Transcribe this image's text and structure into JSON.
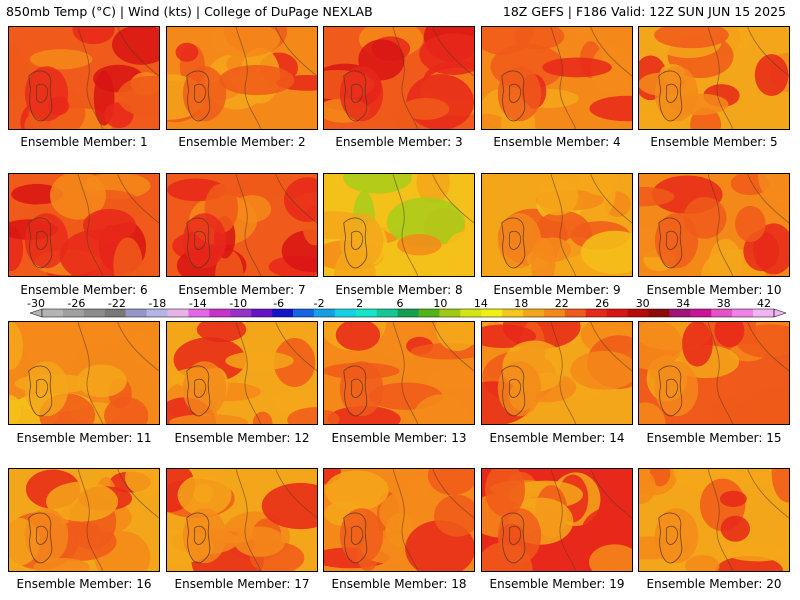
{
  "header": {
    "left": "850mb Temp (°C) | Wind (kts) | College of DuPage NEXLAB",
    "right": "18Z GEFS | F186 Valid: 12Z SUN JUN 15 2025"
  },
  "caption_prefix": "Ensemble Member: ",
  "members": [
    1,
    2,
    3,
    4,
    5,
    6,
    7,
    8,
    9,
    10,
    11,
    12,
    13,
    14,
    15,
    16,
    17,
    18,
    19,
    20
  ],
  "panel_palettes": [
    [
      "#e8281a",
      "#f05a1a",
      "#f4891a",
      "#d81414"
    ],
    [
      "#f05a1a",
      "#f4891a",
      "#f4a61a",
      "#e8281a"
    ],
    [
      "#e8281a",
      "#f05a1a",
      "#f4891a",
      "#d81414"
    ],
    [
      "#f05a1a",
      "#f4891a",
      "#f4a61a",
      "#e8281a"
    ],
    [
      "#f4891a",
      "#f4a61a",
      "#f05a1a",
      "#e8281a"
    ],
    [
      "#e8281a",
      "#f05a1a",
      "#f4891a",
      "#d81414"
    ],
    [
      "#e8281a",
      "#f05a1a",
      "#f4891a",
      "#d81414"
    ],
    [
      "#f4a61a",
      "#f4c01a",
      "#a8cc1a",
      "#f4891a"
    ],
    [
      "#f4891a",
      "#f4a61a",
      "#f05a1a",
      "#f4c01a"
    ],
    [
      "#f05a1a",
      "#f4891a",
      "#e8281a",
      "#f4a61a"
    ],
    [
      "#f4a61a",
      "#f4891a",
      "#f4c01a",
      "#f05a1a"
    ],
    [
      "#f4891a",
      "#f4a61a",
      "#e8281a",
      "#f05a1a"
    ],
    [
      "#f05a1a",
      "#f4891a",
      "#e8281a",
      "#f4a61a"
    ],
    [
      "#f4891a",
      "#f4a61a",
      "#f05a1a",
      "#e8281a"
    ],
    [
      "#f4891a",
      "#f05a1a",
      "#f4a61a",
      "#e8281a"
    ],
    [
      "#f4891a",
      "#f4a61a",
      "#f05a1a",
      "#e8281a"
    ],
    [
      "#f4891a",
      "#f4a61a",
      "#f05a1a",
      "#e8281a"
    ],
    [
      "#f05a1a",
      "#f4891a",
      "#e8281a",
      "#f4a61a"
    ],
    [
      "#f05a1a",
      "#e8281a",
      "#f4891a",
      "#f4a61a"
    ],
    [
      "#f4891a",
      "#f4a61a",
      "#f05a1a",
      "#e8281a"
    ]
  ],
  "colorbar": {
    "ticks": [
      "-30",
      "-26",
      "-22",
      "-18",
      "-14",
      "-10",
      "-6",
      "-2",
      "2",
      "6",
      "10",
      "14",
      "18",
      "22",
      "26",
      "30",
      "34",
      "38",
      "42"
    ],
    "colors": [
      "#b4b4b4",
      "#a0a0a0",
      "#8c8c8c",
      "#787878",
      "#9696c8",
      "#b4b4e6",
      "#e6b4e6",
      "#e664e6",
      "#c832c8",
      "#9632c8",
      "#6414c8",
      "#1414c8",
      "#1464e6",
      "#14a0e6",
      "#14d2e6",
      "#14e6c8",
      "#14c896",
      "#14a050",
      "#50b414",
      "#a0c814",
      "#d2e614",
      "#f0f014",
      "#f4c81a",
      "#f4a61a",
      "#f4891a",
      "#f05a1a",
      "#e8281a",
      "#d81414",
      "#b40a0a",
      "#8c0a0a",
      "#a01478",
      "#c81496",
      "#e650c8",
      "#f082e6",
      "#f0b4f0"
    ]
  }
}
